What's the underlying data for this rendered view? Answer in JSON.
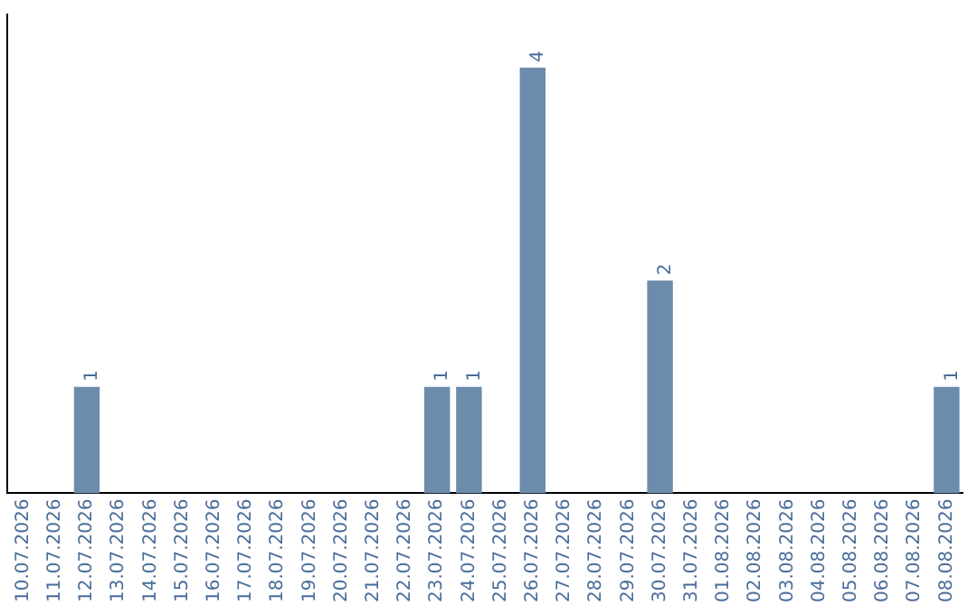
{
  "chart_data": {
    "type": "bar",
    "categories": [
      "10.07.2026",
      "11.07.2026",
      "12.07.2026",
      "13.07.2026",
      "14.07.2026",
      "15.07.2026",
      "16.07.2026",
      "17.07.2026",
      "18.07.2026",
      "19.07.2026",
      "20.07.2026",
      "21.07.2026",
      "22.07.2026",
      "23.07.2026",
      "24.07.2026",
      "25.07.2026",
      "26.07.2026",
      "27.07.2026",
      "28.07.2026",
      "29.07.2026",
      "30.07.2026",
      "31.07.2026",
      "01.08.2026",
      "02.08.2026",
      "03.08.2026",
      "04.08.2026",
      "05.08.2026",
      "06.08.2026",
      "07.08.2026",
      "08.08.2026"
    ],
    "values": [
      0,
      0,
      1,
      0,
      0,
      0,
      0,
      0,
      0,
      0,
      0,
      0,
      0,
      1,
      1,
      0,
      4,
      0,
      0,
      0,
      2,
      0,
      0,
      0,
      0,
      0,
      0,
      0,
      0,
      1
    ],
    "value_labels": [
      null,
      null,
      "1",
      null,
      null,
      null,
      null,
      null,
      null,
      null,
      null,
      null,
      null,
      "1",
      "1",
      null,
      "4",
      null,
      null,
      null,
      "2",
      null,
      null,
      null,
      null,
      null,
      null,
      null,
      null,
      "1"
    ],
    "color": "#6b8cab",
    "tick_labels": "x",
    "grid": false,
    "legend": false
  }
}
